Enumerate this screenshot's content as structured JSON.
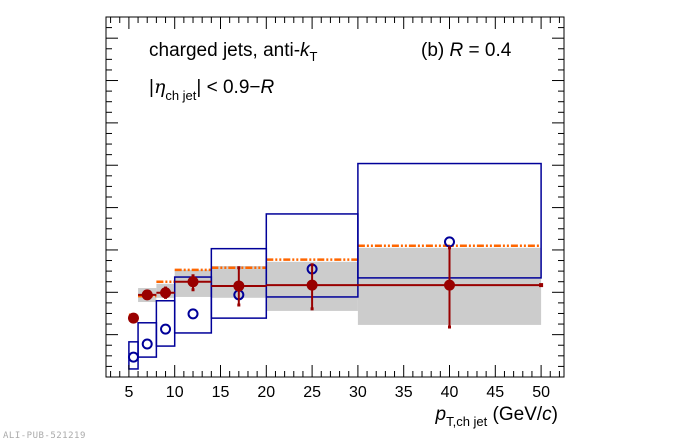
{
  "chart_data": {
    "type": "scatter",
    "title": "",
    "annotations": {
      "line1": "charged jets, anti-",
      "line1_k": "k",
      "line1_sub": "T",
      "panel": "(b) ",
      "panel_R": "R",
      "panel_value": " = 0.4",
      "eta_bar_open": "|",
      "eta": "η",
      "eta_sub": "ch jet",
      "eta_rest": "| < 0.9−",
      "eta_R": "R"
    },
    "xlabel": {
      "p": "p",
      "sub": "T,ch jet",
      "unit_open": " (GeV/",
      "unit_c": "c",
      "unit_close": ")"
    },
    "ylabel": "",
    "xlim": [
      2.5,
      52.5
    ],
    "ylim": [
      0,
      8.5
    ],
    "y_tick_labels_shown": false,
    "x_ticks": [
      5,
      10,
      15,
      20,
      25,
      30,
      35,
      40,
      45,
      50
    ],
    "x_tick_labels": [
      "5",
      "10",
      "15",
      "20",
      "25",
      "30",
      "35",
      "40",
      "45",
      "50"
    ],
    "grid": false,
    "bins": [
      [
        5,
        6
      ],
      [
        6,
        8
      ],
      [
        8,
        10
      ],
      [
        10,
        14
      ],
      [
        14,
        20
      ],
      [
        20,
        30
      ],
      [
        30,
        50
      ]
    ],
    "series": [
      {
        "style": "filled-circle",
        "color": "#990000",
        "x": [
          5.5,
          7,
          9,
          12,
          17,
          25,
          40
        ],
        "y": [
          1.39,
          1.94,
          1.99,
          2.25,
          2.15,
          2.17,
          2.17
        ],
        "stat_err_low": [
          1.36,
          1.86,
          1.88,
          2.06,
          1.7,
          1.61,
          1.18
        ],
        "stat_err_high": [
          1.42,
          2.02,
          2.1,
          2.39,
          2.58,
          2.65,
          3.05
        ],
        "sys_band_low": [
          1.3,
          1.77,
          1.87,
          1.89,
          1.87,
          1.56,
          1.23
        ],
        "sys_band_high": [
          1.44,
          2.1,
          2.2,
          2.53,
          2.62,
          2.72,
          3.05
        ],
        "sys_band_color": "#cccccc"
      },
      {
        "style": "open-circle",
        "color": "#000099",
        "x": [
          5.5,
          7,
          9,
          12,
          17,
          25,
          40
        ],
        "y": [
          0.47,
          0.78,
          1.13,
          1.49,
          1.94,
          2.55,
          3.19
        ],
        "sys_box_low": [
          0.19,
          0.47,
          0.73,
          1.04,
          1.39,
          1.89,
          2.34
        ],
        "sys_box_high": [
          0.83,
          1.28,
          1.8,
          2.36,
          3.03,
          3.85,
          5.04
        ]
      },
      {
        "style": "dash-dot-line",
        "color": "#ff6600",
        "y": [
          1.47,
          1.91,
          2.25,
          2.53,
          2.58,
          2.77,
          3.1
        ]
      }
    ]
  },
  "watermark": "ALI-PUB-521219"
}
